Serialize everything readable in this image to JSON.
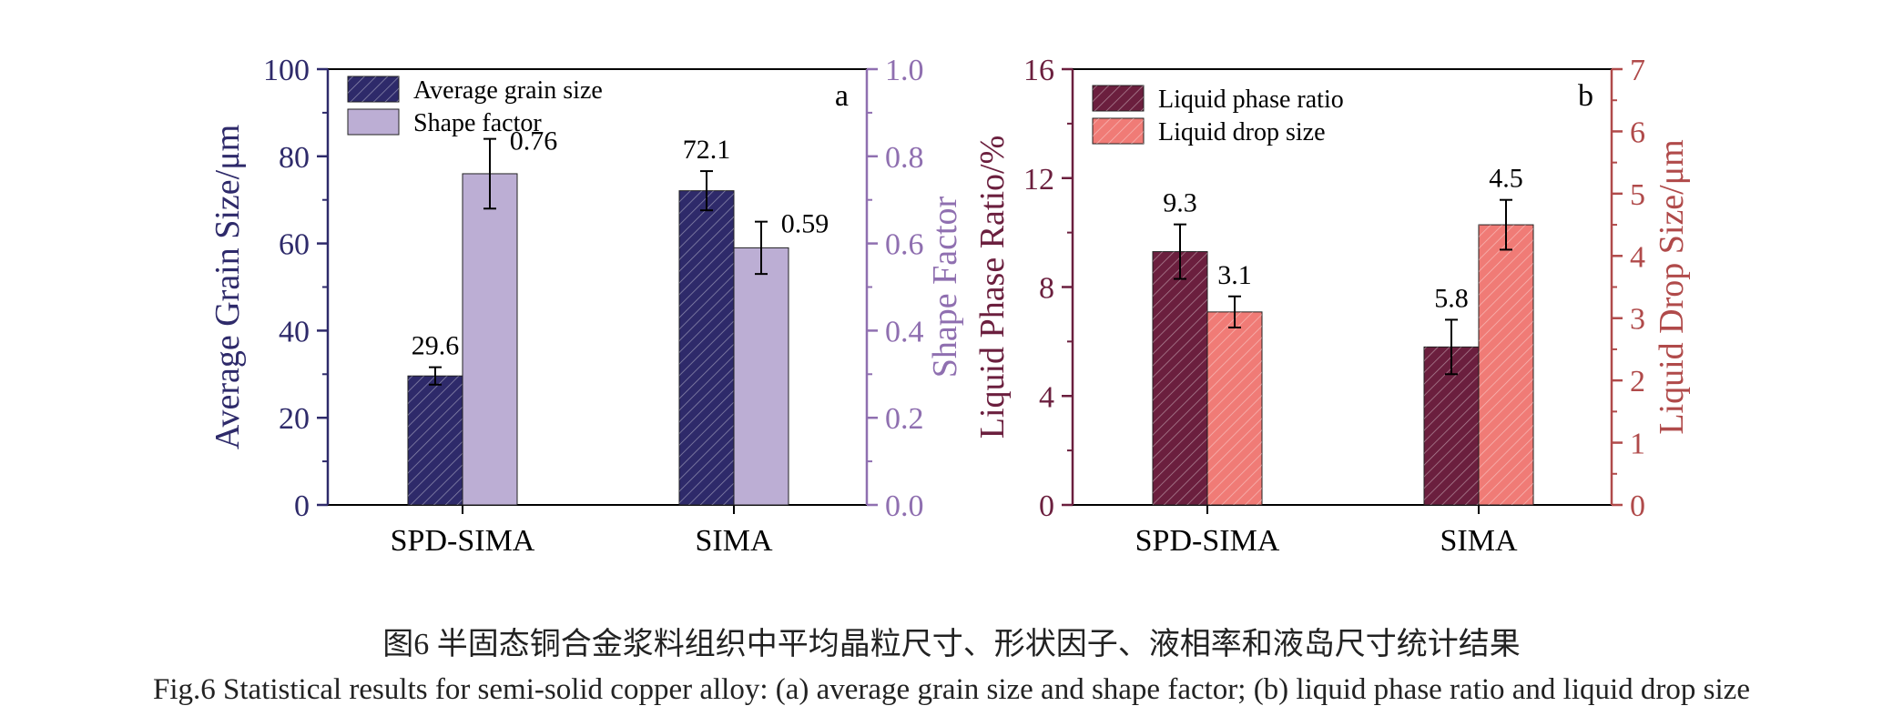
{
  "chart_data": [
    {
      "type": "bar",
      "panel_label": "a",
      "categories": [
        "SPD-SIMA",
        "SIMA"
      ],
      "ylabel_left": "Average Grain Size/μm",
      "ylabel_right": "Shape Factor",
      "ylim_left": [
        0,
        100
      ],
      "ylim_right": [
        0.0,
        1.0
      ],
      "yticks_left": [
        "0",
        "20",
        "40",
        "60",
        "80",
        "100"
      ],
      "yticks_right": [
        "0.0",
        "0.2",
        "0.4",
        "0.6",
        "0.8",
        "1.0"
      ],
      "left_axis_color": "#2e2a6a",
      "right_axis_color": "#8f6fb0",
      "legend_position": "top-left",
      "series": [
        {
          "name": "Average grain size",
          "axis": "left",
          "color": "#2e2a6a",
          "hatched": true,
          "values": [
            29.6,
            72.1
          ],
          "errors": [
            2.0,
            4.5
          ],
          "labels": [
            "29.6",
            "72.1"
          ]
        },
        {
          "name": "Shape factor",
          "axis": "right",
          "color": "#bcaed4",
          "hatched": false,
          "values": [
            0.76,
            0.59
          ],
          "errors": [
            0.08,
            0.06
          ],
          "labels": [
            "0.76",
            "0.59"
          ]
        }
      ]
    },
    {
      "type": "bar",
      "panel_label": "b",
      "categories": [
        "SPD-SIMA",
        "SIMA"
      ],
      "ylabel_left": "Liquid Phase Ratio/%",
      "ylabel_right": "Liquid Drop Size/μm",
      "ylim_left": [
        0,
        16
      ],
      "ylim_right": [
        0,
        7
      ],
      "yticks_left": [
        "0",
        "4",
        "8",
        "12",
        "16"
      ],
      "yticks_right": [
        "0",
        "1",
        "2",
        "3",
        "4",
        "5",
        "6",
        "7"
      ],
      "left_axis_color": "#6b1f3e",
      "right_axis_color": "#b04a4a",
      "legend_position": "top-left",
      "series": [
        {
          "name": "Liquid phase ratio",
          "axis": "left",
          "color": "#6b1f3e",
          "hatched": true,
          "values": [
            9.3,
            5.8
          ],
          "errors": [
            1.0,
            1.0
          ],
          "labels": [
            "9.3",
            "5.8"
          ]
        },
        {
          "name": "Liquid drop size",
          "axis": "right",
          "color": "#f07b76",
          "hatched": true,
          "values": [
            3.1,
            4.5
          ],
          "errors": [
            0.25,
            0.4
          ],
          "labels": [
            "3.1",
            "4.5"
          ]
        }
      ]
    }
  ],
  "caption": {
    "chinese": "图6  半固态铜合金浆料组织中平均晶粒尺寸、形状因子、液相率和液岛尺寸统计结果",
    "english": "Fig.6  Statistical results for semi-solid copper alloy: (a) average grain size and shape factor; (b) liquid phase ratio and liquid drop size"
  }
}
